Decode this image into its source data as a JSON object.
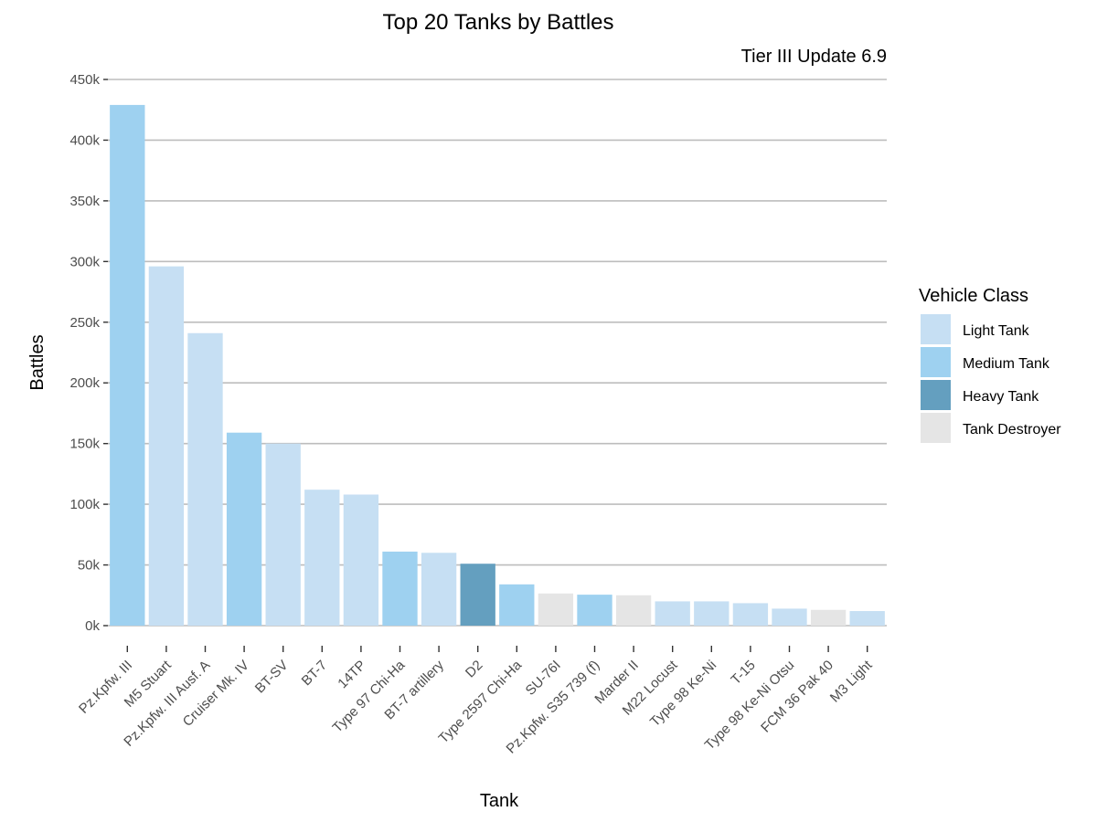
{
  "chart_data": {
    "type": "bar",
    "title": "Top 20 Tanks by Battles",
    "subtitle": "Tier III Update 6.9",
    "xlabel": "Tank",
    "ylabel": "Battles",
    "ylim": [
      0,
      450000
    ],
    "yticks": [
      {
        "value": 0,
        "label": "0k"
      },
      {
        "value": 50000,
        "label": "50k"
      },
      {
        "value": 100000,
        "label": "100k"
      },
      {
        "value": 150000,
        "label": "150k"
      },
      {
        "value": 200000,
        "label": "200k"
      },
      {
        "value": 250000,
        "label": "250k"
      },
      {
        "value": 300000,
        "label": "300k"
      },
      {
        "value": 350000,
        "label": "350k"
      },
      {
        "value": 400000,
        "label": "400k"
      },
      {
        "value": 450000,
        "label": "450k"
      }
    ],
    "grid": true,
    "legend": {
      "title": "Vehicle Class",
      "position": "right",
      "items": [
        {
          "label": "Light Tank",
          "color": "#c6dff3"
        },
        {
          "label": "Medium Tank",
          "color": "#9ed1f0"
        },
        {
          "label": "Heavy Tank",
          "color": "#649fbf"
        },
        {
          "label": "Tank Destroyer",
          "color": "#e5e5e5"
        }
      ]
    },
    "bars": [
      {
        "tank": "Pz.Kpfw. III",
        "battles": 429000,
        "class": "Medium Tank"
      },
      {
        "tank": "M5 Stuart",
        "battles": 296000,
        "class": "Light Tank"
      },
      {
        "tank": "Pz.Kpfw. III Ausf. A",
        "battles": 241000,
        "class": "Light Tank"
      },
      {
        "tank": "Cruiser Mk. IV",
        "battles": 159000,
        "class": "Medium Tank"
      },
      {
        "tank": "BT-SV",
        "battles": 150000,
        "class": "Light Tank"
      },
      {
        "tank": "BT-7",
        "battles": 112000,
        "class": "Light Tank"
      },
      {
        "tank": "14TP",
        "battles": 108000,
        "class": "Light Tank"
      },
      {
        "tank": "Type 97 Chi-Ha",
        "battles": 61000,
        "class": "Medium Tank"
      },
      {
        "tank": "BT-7 artillery",
        "battles": 60000,
        "class": "Light Tank"
      },
      {
        "tank": "D2",
        "battles": 51000,
        "class": "Heavy Tank"
      },
      {
        "tank": "Type 2597 Chi-Ha",
        "battles": 34000,
        "class": "Medium Tank"
      },
      {
        "tank": "SU-76I",
        "battles": 26500,
        "class": "Tank Destroyer"
      },
      {
        "tank": "Pz.Kpfw. S35 739 (f)",
        "battles": 25500,
        "class": "Medium Tank"
      },
      {
        "tank": "Marder II",
        "battles": 25000,
        "class": "Tank Destroyer"
      },
      {
        "tank": "M22 Locust",
        "battles": 20000,
        "class": "Light Tank"
      },
      {
        "tank": "Type 98 Ke-Ni",
        "battles": 20000,
        "class": "Light Tank"
      },
      {
        "tank": "T-15",
        "battles": 18500,
        "class": "Light Tank"
      },
      {
        "tank": "Type 98 Ke-Ni Otsu",
        "battles": 14000,
        "class": "Light Tank"
      },
      {
        "tank": "FCM 36 Pak 40",
        "battles": 13000,
        "class": "Tank Destroyer"
      },
      {
        "tank": "M3 Light",
        "battles": 12000,
        "class": "Light Tank"
      }
    ]
  }
}
